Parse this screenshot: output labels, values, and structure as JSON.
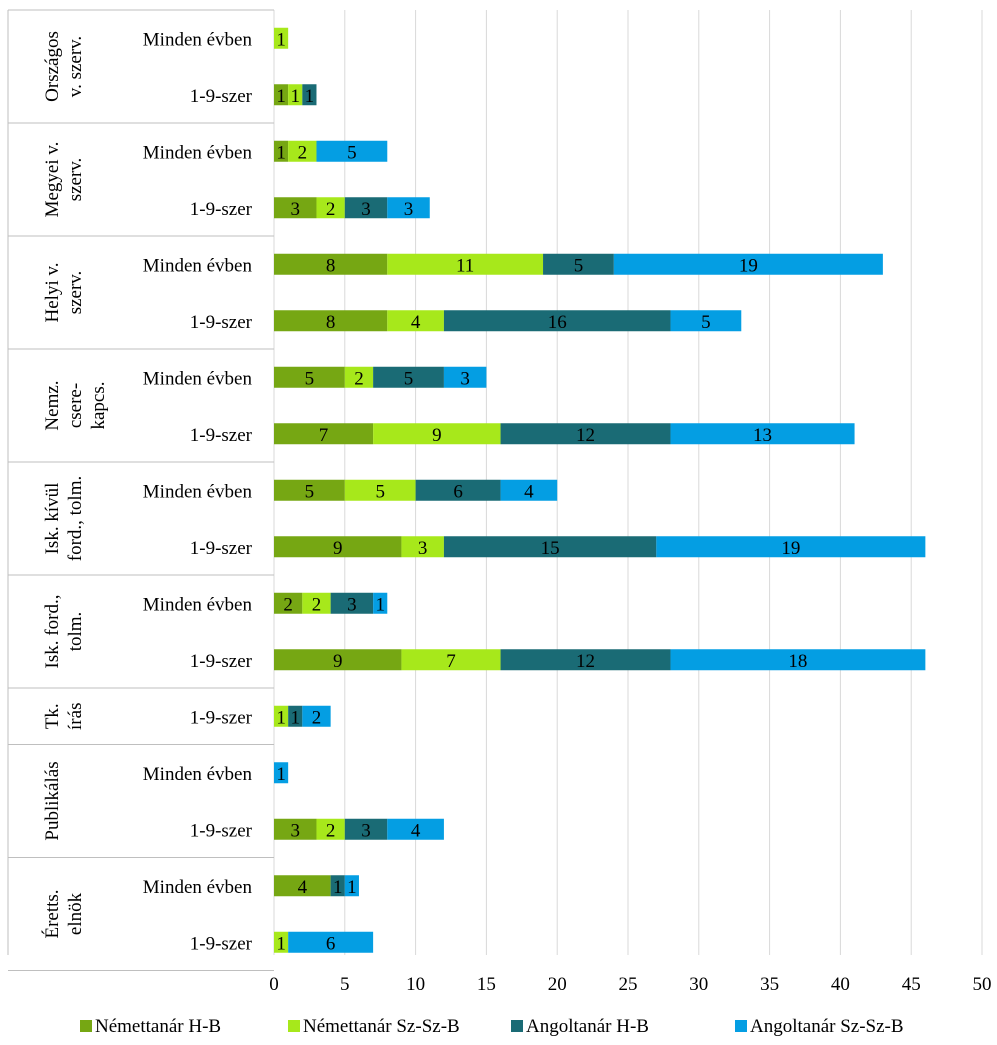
{
  "chart_data": {
    "type": "bar",
    "orientation": "horizontal",
    "stacked": true,
    "grid": true,
    "legend_position": "bottom",
    "xlim": [
      0,
      50
    ],
    "x_ticks": [
      "0",
      "5",
      "10",
      "15",
      "20",
      "25",
      "30",
      "35",
      "40",
      "45",
      "50"
    ],
    "series": [
      {
        "name": "Némettanár H-B",
        "color": "#76a713"
      },
      {
        "name": "Némettanár Sz-Sz-B",
        "color": "#a7e81b"
      },
      {
        "name": "Angoltanár H-B",
        "color": "#1a6b75"
      },
      {
        "name": "Angoltanár Sz-Sz-B",
        "color": "#049ee3"
      }
    ],
    "groups": [
      {
        "label": [
          "Országos",
          "v. szerv."
        ],
        "rows": [
          {
            "label": "Minden évben",
            "values": [
              0,
              1,
              0,
              0
            ]
          },
          {
            "label": "1-9-szer",
            "values": [
              1,
              1,
              1,
              0
            ]
          }
        ]
      },
      {
        "label": [
          "Megyei v.",
          "szerv."
        ],
        "rows": [
          {
            "label": "Minden évben",
            "values": [
              1,
              2,
              0,
              5
            ]
          },
          {
            "label": "1-9-szer",
            "values": [
              3,
              2,
              3,
              3
            ]
          }
        ]
      },
      {
        "label": [
          "Helyi v.",
          "szerv."
        ],
        "rows": [
          {
            "label": "Minden évben",
            "values": [
              8,
              11,
              5,
              19
            ]
          },
          {
            "label": "1-9-szer",
            "values": [
              8,
              4,
              16,
              5
            ]
          }
        ]
      },
      {
        "label": [
          "Nemz.",
          "csere-",
          "kapcs."
        ],
        "rows": [
          {
            "label": "Minden évben",
            "values": [
              5,
              2,
              5,
              3
            ]
          },
          {
            "label": "1-9-szer",
            "values": [
              7,
              9,
              12,
              13
            ]
          }
        ]
      },
      {
        "label": [
          "Isk. kívül",
          "ford., tolm."
        ],
        "rows": [
          {
            "label": "Minden évben",
            "values": [
              5,
              5,
              6,
              4
            ]
          },
          {
            "label": "1-9-szer",
            "values": [
              9,
              3,
              15,
              19
            ]
          }
        ]
      },
      {
        "label": [
          "Isk. ford.,",
          "tolm."
        ],
        "rows": [
          {
            "label": "Minden évben",
            "values": [
              2,
              2,
              3,
              1
            ]
          },
          {
            "label": "1-9-szer",
            "values": [
              9,
              7,
              12,
              18
            ]
          }
        ]
      },
      {
        "label": [
          "Tk.",
          "írás"
        ],
        "rows": [
          {
            "label": "1-9-szer",
            "values": [
              0,
              1,
              1,
              2
            ]
          }
        ]
      },
      {
        "label": [
          "Publikálás"
        ],
        "rows": [
          {
            "label": "Minden évben",
            "values": [
              0,
              0,
              0,
              1
            ]
          },
          {
            "label": "1-9-szer",
            "values": [
              3,
              2,
              3,
              4
            ]
          }
        ]
      },
      {
        "label": [
          "Éretts.",
          "elnök"
        ],
        "rows": [
          {
            "label": "Minden évben",
            "values": [
              4,
              0,
              1,
              1
            ]
          },
          {
            "label": "1-9-szer",
            "values": [
              0,
              1,
              0,
              6
            ]
          }
        ]
      }
    ]
  }
}
